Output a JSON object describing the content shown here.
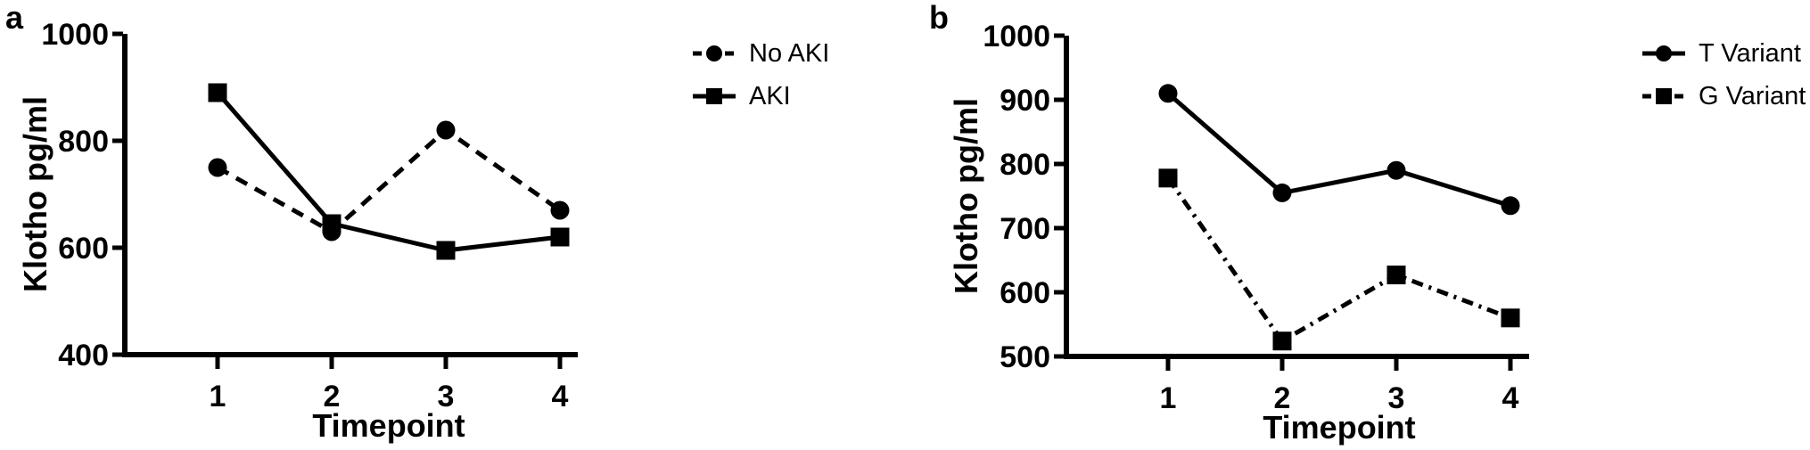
{
  "figure": {
    "background": "#ffffff"
  },
  "colors": {
    "ink": "#000000",
    "background": "#ffffff"
  },
  "chart_data": [
    {
      "type": "line",
      "panel_label": "a",
      "title": "",
      "xlabel": "Timepoint",
      "ylabel": "Klotho pg/ml",
      "x": [
        1,
        2,
        3,
        4
      ],
      "xticklabels": [
        "1",
        "2",
        "3",
        "4"
      ],
      "ylim": [
        400,
        1000
      ],
      "yticks": [
        400,
        600,
        800,
        1000
      ],
      "grid": false,
      "legend_position": "right",
      "series": [
        {
          "name": "No AKI",
          "marker": "circle",
          "line_style": "dashed",
          "values": [
            750,
            630,
            820,
            670
          ]
        },
        {
          "name": "AKI",
          "marker": "square",
          "line_style": "solid",
          "values": [
            890,
            645,
            595,
            620
          ]
        }
      ]
    },
    {
      "type": "line",
      "panel_label": "b",
      "title": "",
      "xlabel": "Timepoint",
      "ylabel": "Klotho pg/ml",
      "x": [
        1,
        2,
        3,
        4
      ],
      "xticklabels": [
        "1",
        "2",
        "3",
        "4"
      ],
      "ylim": [
        500,
        1000
      ],
      "yticks": [
        500,
        600,
        700,
        800,
        900,
        1000
      ],
      "grid": false,
      "legend_position": "right",
      "series": [
        {
          "name": "T Variant",
          "marker": "circle",
          "line_style": "solid",
          "values": [
            910,
            755,
            790,
            735
          ]
        },
        {
          "name": "G Variant",
          "marker": "square",
          "line_style": "dashdot",
          "values": [
            778,
            524,
            627,
            560
          ]
        }
      ]
    }
  ]
}
